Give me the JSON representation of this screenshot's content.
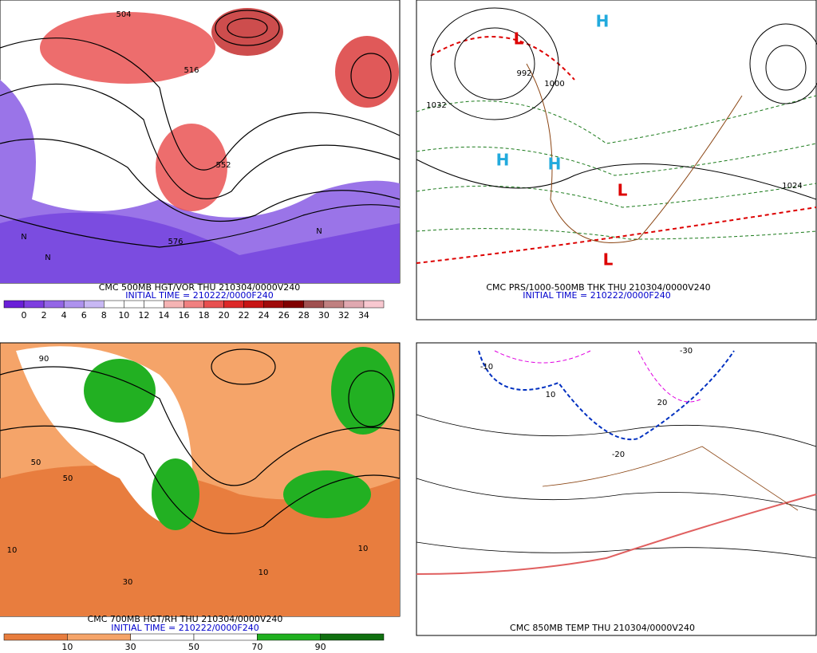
{
  "panels": [
    {
      "title": "CMC 500MB HGT/VOR THU 210304/0000V240",
      "init": "INITIAL TIME = 210222/0000F240",
      "colorbar": {
        "labels": [
          "0",
          "2",
          "4",
          "6",
          "8",
          "10",
          "12",
          "14",
          "16",
          "18",
          "20",
          "22",
          "24",
          "26",
          "28",
          "30",
          "32",
          "34"
        ],
        "colors": [
          "#6a1fd8",
          "#7e3ee0",
          "#9466e6",
          "#ae92ee",
          "#c8b8f4",
          "#ffffff",
          "#ffffff",
          "#ffffff",
          "#f5b4b4",
          "#f08080",
          "#e85050",
          "#dd2828",
          "#c81414",
          "#a00a0a",
          "#800000",
          "#a05050",
          "#c08080",
          "#e0a8b0",
          "#f8c8d0"
        ]
      },
      "map_labels": [
        "504",
        "516",
        "552",
        "576",
        "N",
        "N",
        "N"
      ]
    },
    {
      "title": "CMC PRS/1000-500MB THK THU 210304/0000V240",
      "init": "INITIAL TIME = 210222/0000F240",
      "map_labels": [
        "1032",
        "1000",
        "992",
        "1024",
        "H",
        "H",
        "H",
        "L",
        "L",
        "L"
      ]
    },
    {
      "title": "CMC 700MB HGT/RH THU 210304/0000V240",
      "init": "INITIAL TIME = 210222/0000F240",
      "colorbar": {
        "labels": [
          "10",
          "30",
          "50",
          "70",
          "90"
        ],
        "colors": [
          "#e87d3e",
          "#f5a469",
          "#ffffff",
          "#ffffff",
          "#20b020",
          "#107010"
        ]
      },
      "map_labels": [
        "10",
        "10",
        "10",
        "30",
        "50",
        "50",
        "90"
      ]
    },
    {
      "title": "CMC 850MB TEMP THU 210304/0000V240",
      "map_labels": [
        "-10",
        "-20",
        "20",
        "10",
        "-30"
      ]
    }
  ]
}
